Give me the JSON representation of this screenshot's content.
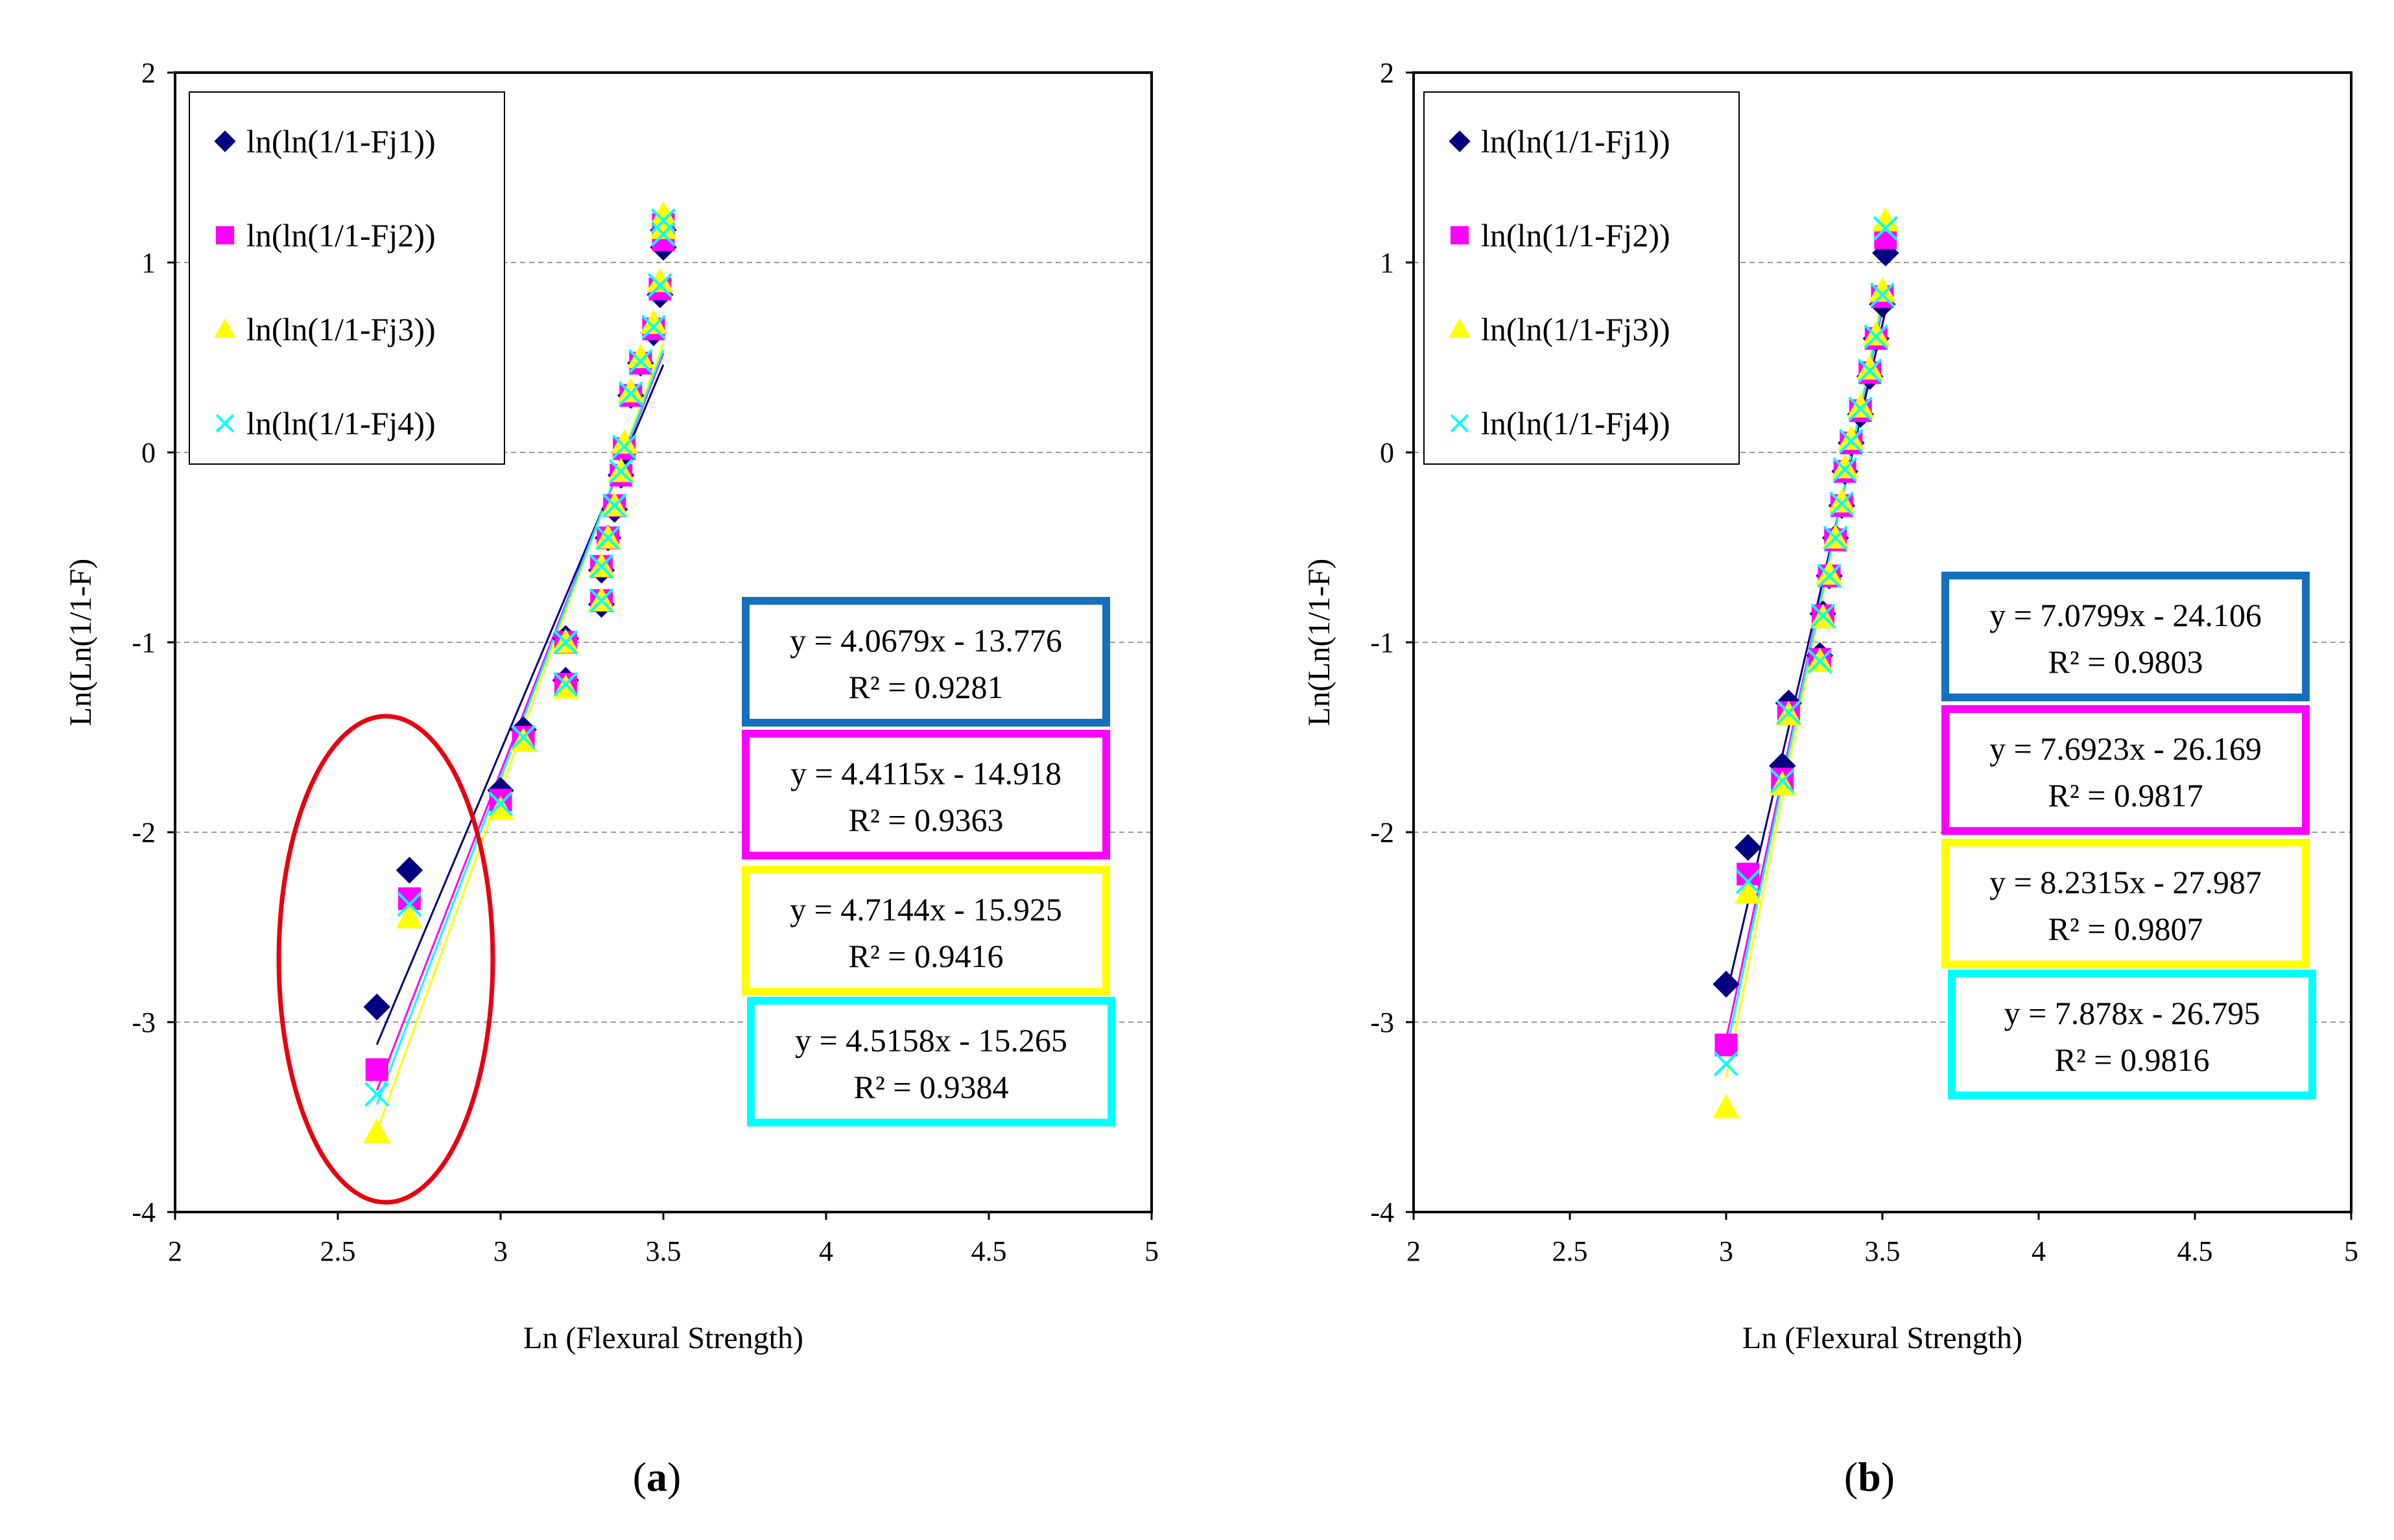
{
  "colors": {
    "series": [
      "#000080",
      "#FF00FF",
      "#FFFF00",
      "#00FFFF"
    ],
    "equation_box_borders": [
      "#1670BD",
      "#FF00FF",
      "#FFFF00",
      "#00FFFF"
    ],
    "outlier_ellipse": "#E8000E",
    "grid": "#999999"
  },
  "markers": [
    "diamond",
    "square",
    "triangle",
    "cross"
  ],
  "chart_data": [
    {
      "type": "scatter",
      "panel_label": "(a)",
      "panel_label_parts": [
        "(",
        "a",
        ")"
      ],
      "xlabel": "Ln (Flexural Strength)",
      "ylabel": "Ln(Ln(1/1-F)",
      "xlim": [
        2,
        5
      ],
      "ylim": [
        -4,
        2
      ],
      "xticks": [
        "2",
        "2.5",
        "3",
        "3.5",
        "4",
        "4.5",
        "5"
      ],
      "yticks": [
        "-4",
        "-3",
        "-2",
        "-1",
        "0",
        "1",
        "2"
      ],
      "grid": "horizontal dashed",
      "legend_position": "top-left",
      "annotation": "outlier ellipse around lowest points",
      "series": [
        {
          "name": "ln(ln(1/1-Fj1))",
          "x": [
            2.62,
            2.72,
            3.0,
            3.07,
            3.2,
            3.2,
            3.31,
            3.31,
            3.33,
            3.35,
            3.37,
            3.38,
            3.4,
            3.43,
            3.47,
            3.49,
            3.5,
            3.5
          ],
          "y": [
            -2.92,
            -2.2,
            -1.78,
            -1.46,
            -1.2,
            -0.98,
            -0.8,
            -0.62,
            -0.45,
            -0.3,
            -0.12,
            0.0,
            0.3,
            0.47,
            0.63,
            0.83,
            1.08,
            1.17
          ],
          "equation": "y = 4.0679x - 13.776",
          "r2": "R² = 0.9281"
        },
        {
          "name": "ln(ln(1/1-Fj2))",
          "x": [
            2.62,
            2.72,
            3.0,
            3.07,
            3.2,
            3.2,
            3.31,
            3.31,
            3.33,
            3.35,
            3.37,
            3.38,
            3.4,
            3.43,
            3.47,
            3.49,
            3.5,
            3.5
          ],
          "y": [
            -3.25,
            -2.35,
            -1.83,
            -1.5,
            -1.22,
            -1.0,
            -0.78,
            -0.6,
            -0.45,
            -0.28,
            -0.12,
            0.02,
            0.3,
            0.47,
            0.65,
            0.86,
            1.12,
            1.2
          ],
          "equation": "y = 4.4115x - 14.918",
          "r2": "R² = 0.9363"
        },
        {
          "name": "ln(ln(1/1-Fj3))",
          "x": [
            2.62,
            2.72,
            3.0,
            3.07,
            3.2,
            3.2,
            3.31,
            3.31,
            3.33,
            3.35,
            3.37,
            3.38,
            3.4,
            3.43,
            3.47,
            3.49,
            3.5,
            3.5
          ],
          "y": [
            -3.58,
            -2.45,
            -1.88,
            -1.52,
            -1.24,
            -1.0,
            -0.78,
            -0.6,
            -0.45,
            -0.28,
            -0.1,
            0.05,
            0.32,
            0.5,
            0.68,
            0.9,
            1.18,
            1.25
          ],
          "equation": "y = 4.7144x - 15.925",
          "r2": "R² = 0.9416"
        },
        {
          "name": "ln(ln(1/1-Fj4))",
          "x": [
            2.62,
            2.72,
            3.0,
            3.07,
            3.2,
            3.2,
            3.31,
            3.31,
            3.33,
            3.35,
            3.37,
            3.38,
            3.4,
            3.43,
            3.47,
            3.49,
            3.5,
            3.5
          ],
          "y": [
            -3.38,
            -2.38,
            -1.85,
            -1.5,
            -1.22,
            -1.0,
            -0.78,
            -0.6,
            -0.45,
            -0.28,
            -0.1,
            0.03,
            0.31,
            0.48,
            0.66,
            0.88,
            1.15,
            1.22
          ],
          "equation": "y = 4.5158x - 15.265",
          "r2": "R² = 0.9384"
        }
      ]
    },
    {
      "type": "scatter",
      "panel_label": "(b)",
      "panel_label_parts": [
        "(",
        "b",
        ")"
      ],
      "xlabel": "Ln (Flexural Strength)",
      "ylabel": "Ln(Ln(1/1-F)",
      "xlim": [
        2,
        5
      ],
      "ylim": [
        -4,
        2
      ],
      "xticks": [
        "2",
        "2.5",
        "3",
        "3.5",
        "4",
        "4.5",
        "5"
      ],
      "yticks": [
        "-4",
        "-3",
        "-2",
        "-1",
        "0",
        "1",
        "2"
      ],
      "grid": "horizontal dashed",
      "legend_position": "top-left",
      "series": [
        {
          "name": "ln(ln(1/1-Fj1))",
          "x": [
            3.0,
            3.07,
            3.18,
            3.2,
            3.3,
            3.31,
            3.33,
            3.35,
            3.37,
            3.38,
            3.4,
            3.43,
            3.46,
            3.48,
            3.5,
            3.51
          ],
          "y": [
            -2.8,
            -2.08,
            -1.65,
            -1.32,
            -1.07,
            -0.85,
            -0.65,
            -0.45,
            -0.28,
            -0.1,
            0.05,
            0.2,
            0.4,
            0.6,
            0.78,
            1.05
          ],
          "equation": "y = 7.0799x - 24.106",
          "r2": "R² = 0.9803"
        },
        {
          "name": "ln(ln(1/1-Fj2))",
          "x": [
            3.0,
            3.07,
            3.18,
            3.2,
            3.3,
            3.31,
            3.33,
            3.35,
            3.37,
            3.38,
            3.4,
            3.43,
            3.46,
            3.48,
            3.5,
            3.51
          ],
          "y": [
            -3.12,
            -2.22,
            -1.72,
            -1.37,
            -1.09,
            -0.86,
            -0.65,
            -0.46,
            -0.28,
            -0.1,
            0.05,
            0.22,
            0.42,
            0.6,
            0.82,
            1.13
          ],
          "equation": "y = 7.6923x - 26.169",
          "r2": "R² = 0.9817"
        },
        {
          "name": "ln(ln(1/1-Fj3))",
          "x": [
            3.0,
            3.07,
            3.18,
            3.2,
            3.3,
            3.31,
            3.33,
            3.35,
            3.37,
            3.38,
            3.4,
            3.43,
            3.46,
            3.48,
            3.5,
            3.51
          ],
          "y": [
            -3.45,
            -2.32,
            -1.75,
            -1.38,
            -1.1,
            -0.87,
            -0.64,
            -0.45,
            -0.26,
            -0.08,
            0.07,
            0.24,
            0.44,
            0.62,
            0.85,
            1.22
          ],
          "equation": "y = 8.2315x - 27.987",
          "r2": "R² = 0.9807"
        },
        {
          "name": "ln(ln(1/1-Fj4))",
          "x": [
            3.0,
            3.07,
            3.18,
            3.2,
            3.3,
            3.31,
            3.33,
            3.35,
            3.37,
            3.38,
            3.4,
            3.43,
            3.46,
            3.48,
            3.5,
            3.51
          ],
          "y": [
            -3.22,
            -2.26,
            -1.73,
            -1.37,
            -1.1,
            -0.86,
            -0.65,
            -0.45,
            -0.27,
            -0.09,
            0.06,
            0.23,
            0.43,
            0.61,
            0.83,
            1.18
          ],
          "equation": "y = 7.878x - 26.795",
          "r2": "R² = 0.9816"
        }
      ]
    }
  ]
}
